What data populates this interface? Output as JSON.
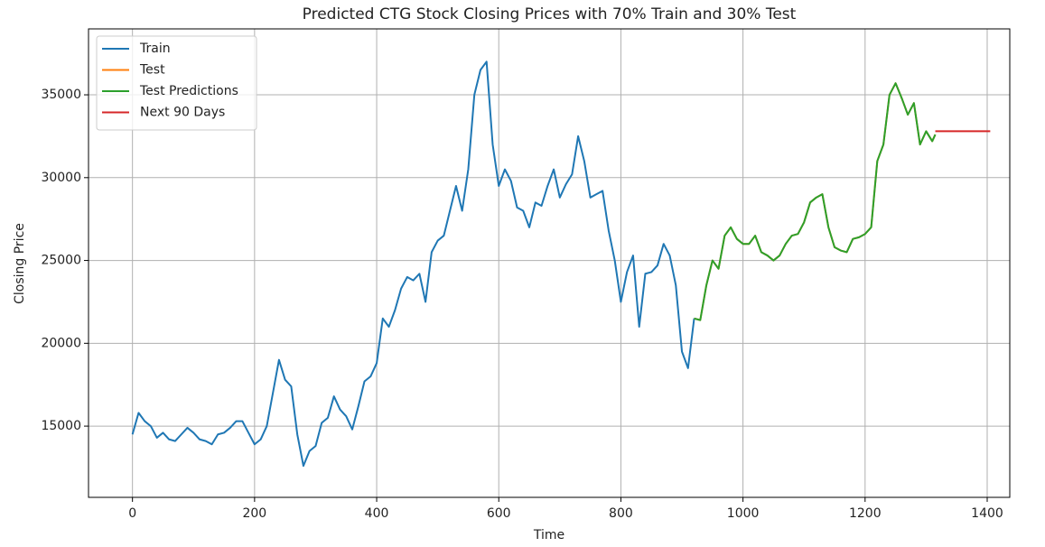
{
  "chart_data": {
    "type": "line",
    "title": "Predicted CTG Stock Closing Prices with 70% Train and 30% Test",
    "x_label": "Time",
    "y_label": "Closing Price",
    "xlim": [
      -72,
      1437
    ],
    "ylim": [
      10700,
      38980
    ],
    "xticks": [
      0,
      200,
      400,
      600,
      800,
      1000,
      1200,
      1400
    ],
    "yticks": [
      15000,
      20000,
      25000,
      30000,
      35000
    ],
    "grid": true,
    "legend": "upper left",
    "series": [
      {
        "name": "Train",
        "color": "#1f77b4",
        "x": [
          0,
          10,
          20,
          30,
          40,
          50,
          60,
          70,
          80,
          90,
          100,
          110,
          120,
          130,
          140,
          150,
          160,
          170,
          180,
          190,
          200,
          210,
          220,
          230,
          240,
          250,
          260,
          270,
          280,
          290,
          300,
          310,
          320,
          330,
          340,
          350,
          360,
          370,
          380,
          390,
          400,
          410,
          420,
          430,
          440,
          450,
          460,
          470,
          480,
          490,
          500,
          510,
          520,
          530,
          540,
          550,
          560,
          570,
          580,
          590,
          600,
          610,
          620,
          630,
          640,
          650,
          660,
          670,
          680,
          690,
          700,
          710,
          720,
          730,
          740,
          750,
          760,
          770,
          780,
          790,
          800,
          810,
          820,
          830,
          840,
          850,
          860,
          870,
          880,
          890,
          900,
          910,
          920
        ],
        "values": [
          14500,
          15800,
          15300,
          15000,
          14300,
          14600,
          14200,
          14100,
          14500,
          14900,
          14600,
          14200,
          14100,
          13900,
          14500,
          14600,
          14900,
          15300,
          15300,
          14600,
          13900,
          14200,
          15000,
          17000,
          19000,
          17800,
          17400,
          14500,
          12600,
          13500,
          13800,
          15200,
          15500,
          16800,
          16000,
          15600,
          14800,
          16200,
          17700,
          18000,
          18800,
          21500,
          21000,
          22000,
          23300,
          24000,
          23800,
          24200,
          22500,
          25500,
          26200,
          26500,
          28000,
          29500,
          28000,
          30500,
          35000,
          36500,
          37000,
          32000,
          29500,
          30500,
          29800,
          28200,
          28000,
          27000,
          28500,
          28300,
          29500,
          30500,
          28800,
          29600,
          30200,
          32500,
          31000,
          28800,
          29000,
          29200,
          26800,
          25000,
          22500,
          24300,
          25300,
          21000,
          24200,
          24300,
          24700,
          26000,
          25300,
          23500,
          19500,
          18500,
          21500
        ]
      },
      {
        "name": "Test",
        "color": "#ff7f0e",
        "x": [
          920,
          930,
          940,
          950,
          960,
          970,
          980,
          990,
          1000,
          1010,
          1020,
          1030,
          1040,
          1050,
          1060,
          1070,
          1080,
          1090,
          1100,
          1110,
          1120,
          1130,
          1140,
          1150,
          1160,
          1170,
          1180,
          1190,
          1200,
          1210,
          1220,
          1230,
          1240,
          1250,
          1260,
          1270,
          1280,
          1290,
          1300,
          1310,
          1315
        ],
        "values": [
          21500,
          21400,
          23500,
          25000,
          24500,
          26500,
          27000,
          26300,
          26000,
          26000,
          26500,
          25500,
          25300,
          25000,
          25300,
          26000,
          26500,
          26600,
          27300,
          28500,
          28800,
          29000,
          27000,
          25800,
          25600,
          25500,
          26300,
          26400,
          26600,
          27000,
          31000,
          32000,
          35000,
          35700,
          34800,
          33800,
          34500,
          32000,
          32800,
          32200,
          32600
        ]
      },
      {
        "name": "Test Predictions",
        "color": "#2ca02c",
        "x": [
          920,
          930,
          940,
          950,
          960,
          970,
          980,
          990,
          1000,
          1010,
          1020,
          1030,
          1040,
          1050,
          1060,
          1070,
          1080,
          1090,
          1100,
          1110,
          1120,
          1130,
          1140,
          1150,
          1160,
          1170,
          1180,
          1190,
          1200,
          1210,
          1220,
          1230,
          1240,
          1250,
          1260,
          1270,
          1280,
          1290,
          1300,
          1310,
          1315
        ],
        "values": [
          21500,
          21400,
          23500,
          25000,
          24500,
          26500,
          27000,
          26300,
          26000,
          26000,
          26500,
          25500,
          25300,
          25000,
          25300,
          26000,
          26500,
          26600,
          27300,
          28500,
          28800,
          29000,
          27000,
          25800,
          25600,
          25500,
          26300,
          26400,
          26600,
          27000,
          31000,
          32000,
          35000,
          35700,
          34800,
          33800,
          34500,
          32000,
          32800,
          32200,
          32600
        ]
      },
      {
        "name": "Next 90 Days",
        "color": "#d62728",
        "x": [
          1315,
          1405
        ],
        "values": [
          32800,
          32800
        ]
      }
    ]
  }
}
